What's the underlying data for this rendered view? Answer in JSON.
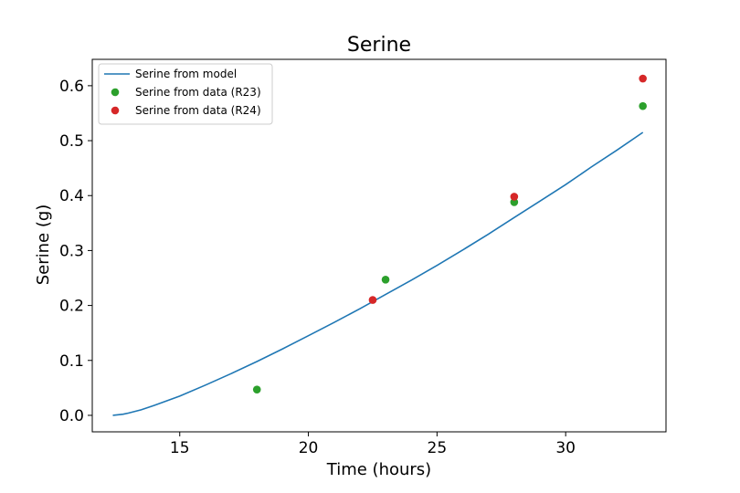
{
  "chart_data": {
    "type": "line",
    "title": "Serine",
    "xlabel": "Time (hours)",
    "ylabel": "Serine (g)",
    "xlim": [
      11.6,
      33.9
    ],
    "ylim": [
      -0.03,
      0.648
    ],
    "xticks": [
      15,
      20,
      25,
      30
    ],
    "yticks": [
      0.0,
      0.1,
      0.2,
      0.3,
      0.4,
      0.5,
      0.6
    ],
    "x_tick_labels": [
      "15",
      "20",
      "25",
      "30"
    ],
    "y_tick_labels": [
      "0.0",
      "0.1",
      "0.2",
      "0.3",
      "0.4",
      "0.5",
      "0.6"
    ],
    "grid": false,
    "legend_position": "upper-left",
    "series": [
      {
        "name": "Serine from model",
        "kind": "line",
        "color": "#1f77b4",
        "x": [
          12.4,
          12.8,
          13.0,
          13.5,
          14.0,
          15.0,
          16.0,
          17.0,
          18.0,
          19.0,
          20.0,
          21.0,
          22.0,
          23.0,
          24.0,
          25.0,
          26.0,
          27.0,
          28.0,
          29.0,
          30.0,
          31.0,
          32.0,
          33.0
        ],
        "y": [
          0.0,
          0.002,
          0.004,
          0.01,
          0.018,
          0.035,
          0.055,
          0.076,
          0.098,
          0.121,
          0.145,
          0.169,
          0.194,
          0.22,
          0.246,
          0.273,
          0.301,
          0.33,
          0.36,
          0.39,
          0.42,
          0.452,
          0.483,
          0.515
        ]
      },
      {
        "name": "Serine from data (R23)",
        "kind": "scatter",
        "color": "#2ca02c",
        "x": [
          18.0,
          23.0,
          28.0,
          33.0
        ],
        "y": [
          0.047,
          0.247,
          0.388,
          0.563
        ]
      },
      {
        "name": "Serine from data (R24)",
        "kind": "scatter",
        "color": "#d62728",
        "x": [
          22.5,
          28.0,
          33.0
        ],
        "y": [
          0.21,
          0.398,
          0.613
        ]
      }
    ]
  }
}
